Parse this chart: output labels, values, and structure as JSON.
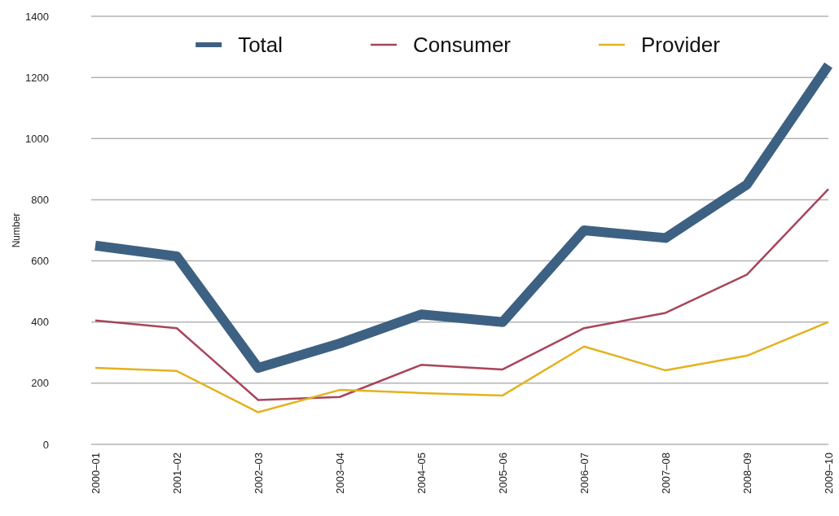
{
  "chart_data": {
    "type": "line",
    "ylabel": "Number",
    "categories": [
      "2000–01",
      "2001–02",
      "2002–03",
      "2003–04",
      "2004–05",
      "2005–06",
      "2006–07",
      "2007–08",
      "2008–09",
      "2009–10"
    ],
    "series": [
      {
        "name": "Total",
        "color": "#3d6182",
        "values": [
          650,
          615,
          250,
          330,
          425,
          400,
          700,
          675,
          850,
          1240
        ]
      },
      {
        "name": "Consumer",
        "color": "#a8455a",
        "values": [
          405,
          380,
          145,
          155,
          260,
          245,
          380,
          430,
          555,
          835
        ]
      },
      {
        "name": "Provider",
        "color": "#e3b21e",
        "values": [
          250,
          240,
          105,
          178,
          168,
          160,
          320,
          242,
          290,
          400
        ]
      }
    ],
    "ylim": [
      0,
      1400
    ],
    "yticks": [
      0,
      200,
      400,
      600,
      800,
      1000,
      1200,
      1400
    ],
    "grid": "y",
    "legend": "top"
  }
}
